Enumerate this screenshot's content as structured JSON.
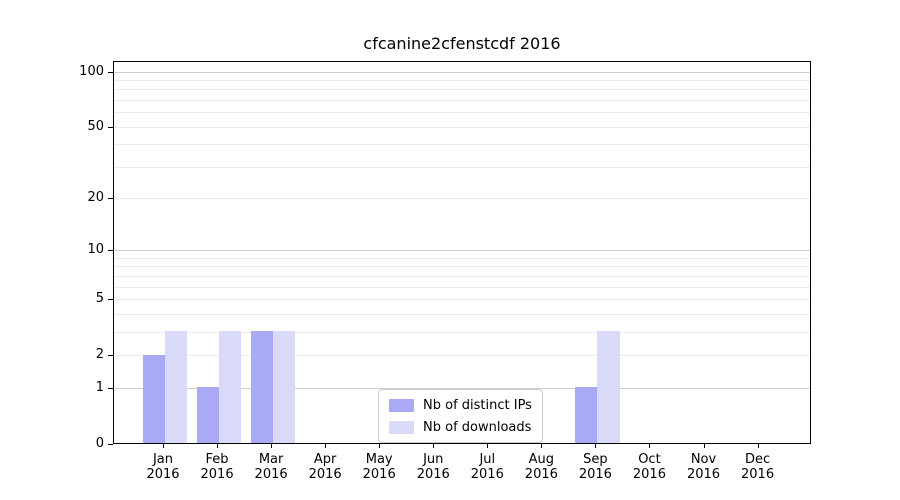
{
  "title": "cfcanine2cfenstcdf 2016",
  "legend": {
    "items": [
      {
        "label": "Nb of distinct IPs",
        "color": "#a9a9f5"
      },
      {
        "label": "Nb of downloads",
        "color": "#d9d9f8"
      }
    ]
  },
  "colors": {
    "bar_distinct_ips": "#a9a9f5",
    "bar_downloads": "#d9d9f8",
    "grid_major": "#cfcfcf",
    "grid_minor": "#ececec",
    "spine": "#000000",
    "text": "#000000",
    "legend_border": "#cccccc"
  },
  "chart_data": {
    "type": "bar",
    "title": "cfcanine2cfenstcdf 2016",
    "categories": [
      "Jan",
      "Feb",
      "Mar",
      "Apr",
      "May",
      "Jun",
      "Jul",
      "Aug",
      "Sep",
      "Oct",
      "Nov",
      "Dec"
    ],
    "category_year": "2016",
    "series": [
      {
        "name": "Nb of distinct IPs",
        "color": "#a9a9f5",
        "values": [
          2,
          1,
          3,
          0,
          0,
          0,
          0,
          0,
          1,
          0,
          0,
          0
        ]
      },
      {
        "name": "Nb of downloads",
        "color": "#d9d9f8",
        "values": [
          3,
          3,
          3,
          0,
          0,
          0,
          0,
          0,
          3,
          0,
          0,
          0
        ]
      }
    ],
    "xlabel": "",
    "ylabel": "",
    "y_scale": "log1p",
    "y_ticks_labeled": [
      0,
      1,
      2,
      5,
      10,
      20,
      50,
      100
    ],
    "y_gridlines_major": [
      1,
      10,
      100
    ],
    "y_gridlines_minor": [
      2,
      3,
      4,
      5,
      6,
      7,
      8,
      9,
      20,
      30,
      40,
      50,
      60,
      70,
      80,
      90
    ],
    "ylim": [
      0,
      114
    ],
    "grid": true,
    "legend_position": "lower center"
  }
}
